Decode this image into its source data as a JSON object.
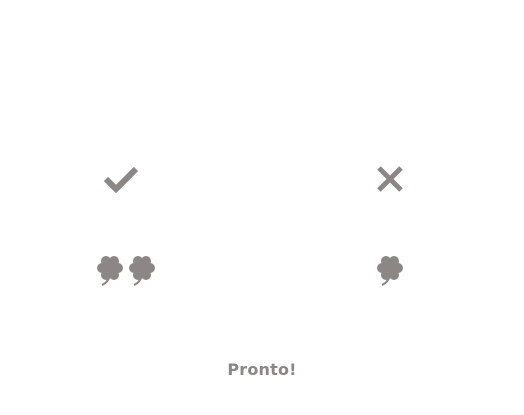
{
  "colors": {
    "icon": "#8c8785",
    "text": "#8c8785",
    "background": "#ffffff"
  },
  "icons": {
    "confirm": "check-icon",
    "cancel": "close-icon",
    "double_luck": "four-leaf-clover-icon",
    "single_luck": "four-leaf-clover-icon"
  },
  "status": {
    "label": "Pronto!"
  }
}
